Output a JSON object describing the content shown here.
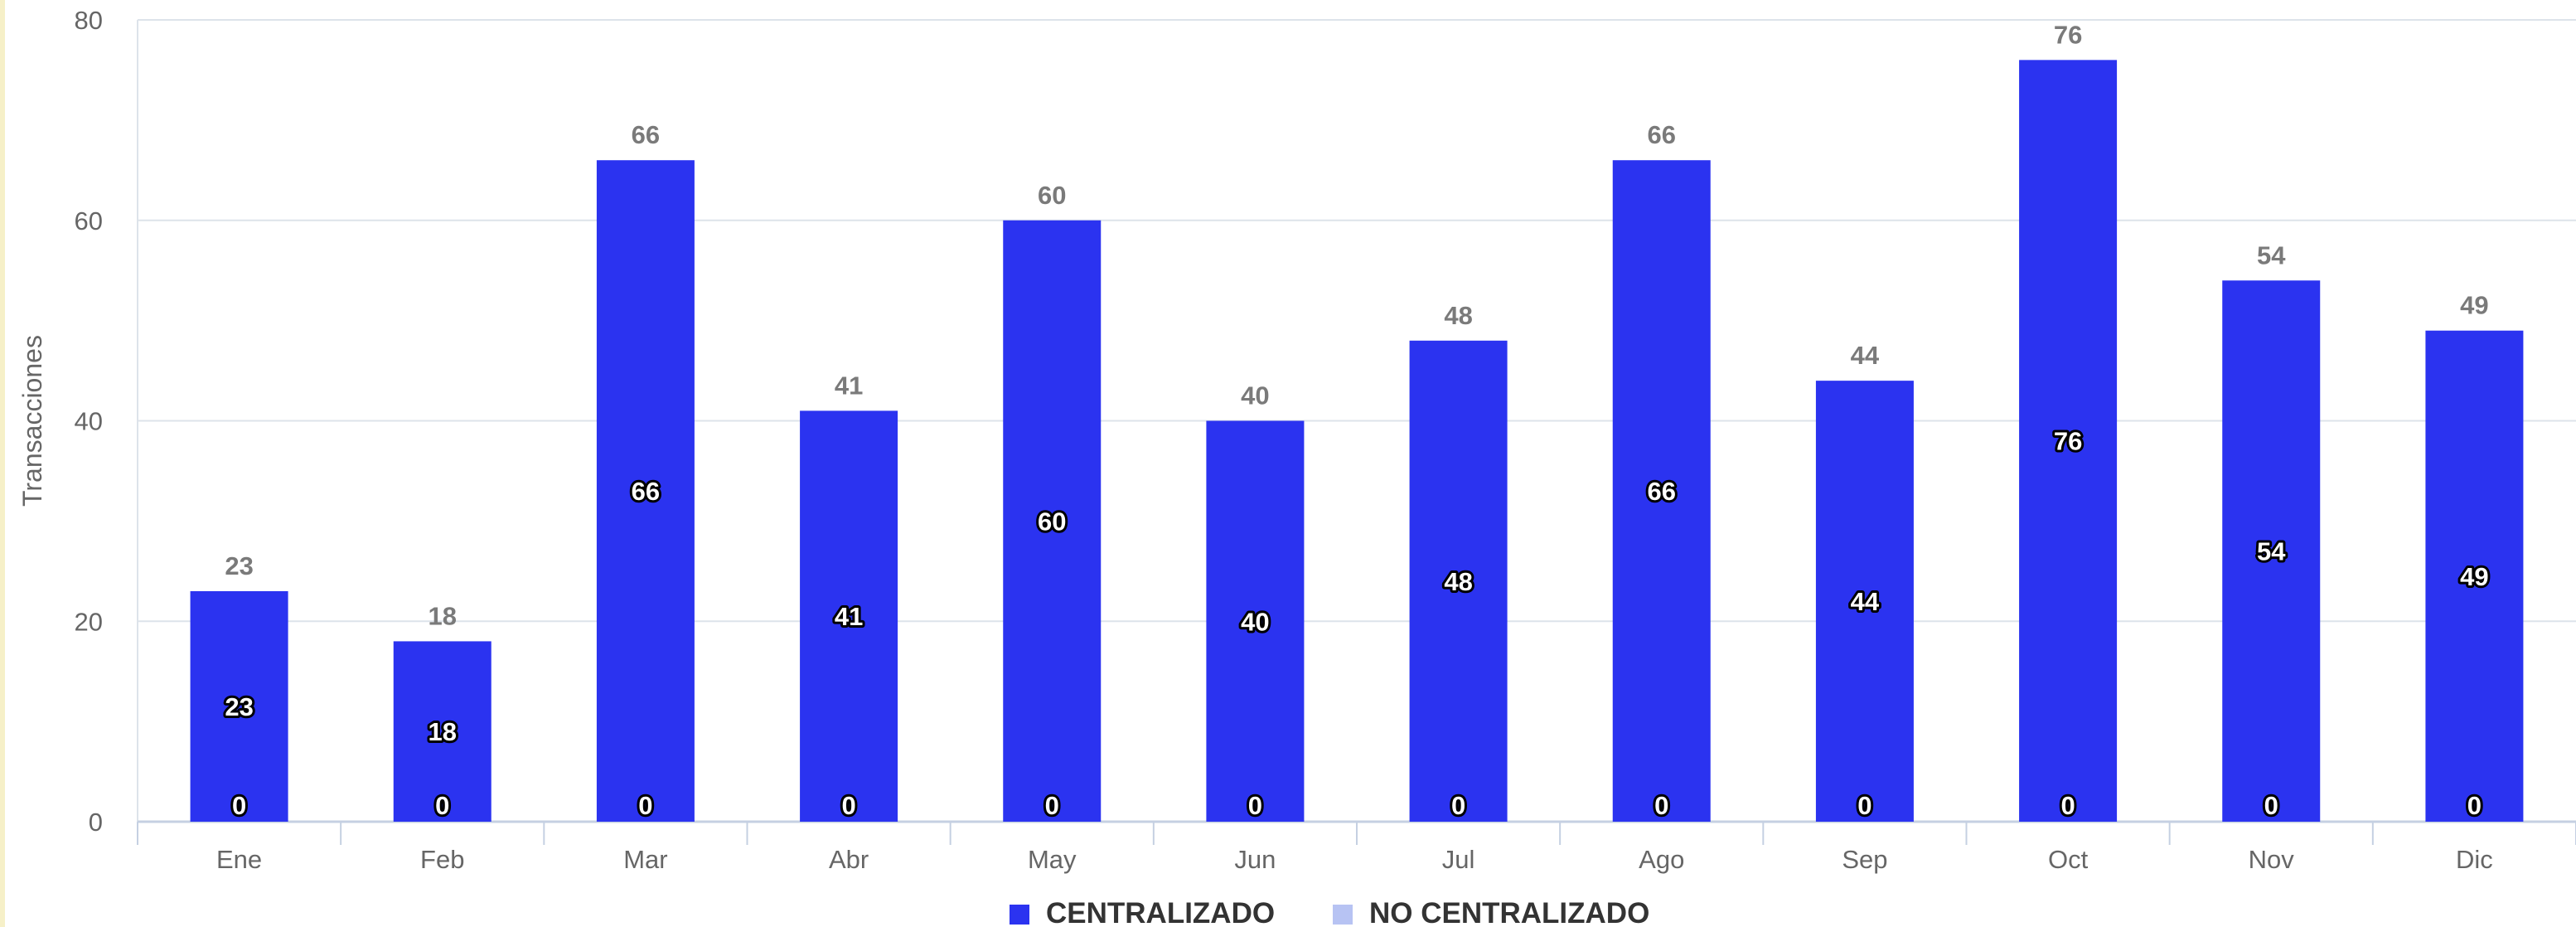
{
  "chart_data": {
    "type": "bar",
    "ylabel": "Transacciones",
    "xlabel": "",
    "ylim": [
      0,
      80
    ],
    "yticks": [
      0,
      20,
      40,
      60,
      80
    ],
    "grid": true,
    "legend_position": "bottom",
    "categories": [
      "Ene",
      "Feb",
      "Mar",
      "Abr",
      "May",
      "Jun",
      "Jul",
      "Ago",
      "Sep",
      "Oct",
      "Nov",
      "Dic"
    ],
    "series": [
      {
        "name": "CENTRALIZADO",
        "color": "#2b33f0",
        "values": [
          23,
          18,
          66,
          41,
          60,
          40,
          48,
          66,
          44,
          76,
          54,
          49
        ]
      },
      {
        "name": "NO CENTRALIZADO",
        "color": "#b7c3f3",
        "values": [
          0,
          0,
          0,
          0,
          0,
          0,
          0,
          0,
          0,
          0,
          0,
          0
        ]
      }
    ],
    "totals": [
      23,
      18,
      66,
      41,
      60,
      40,
      48,
      66,
      44,
      76,
      54,
      49
    ]
  }
}
